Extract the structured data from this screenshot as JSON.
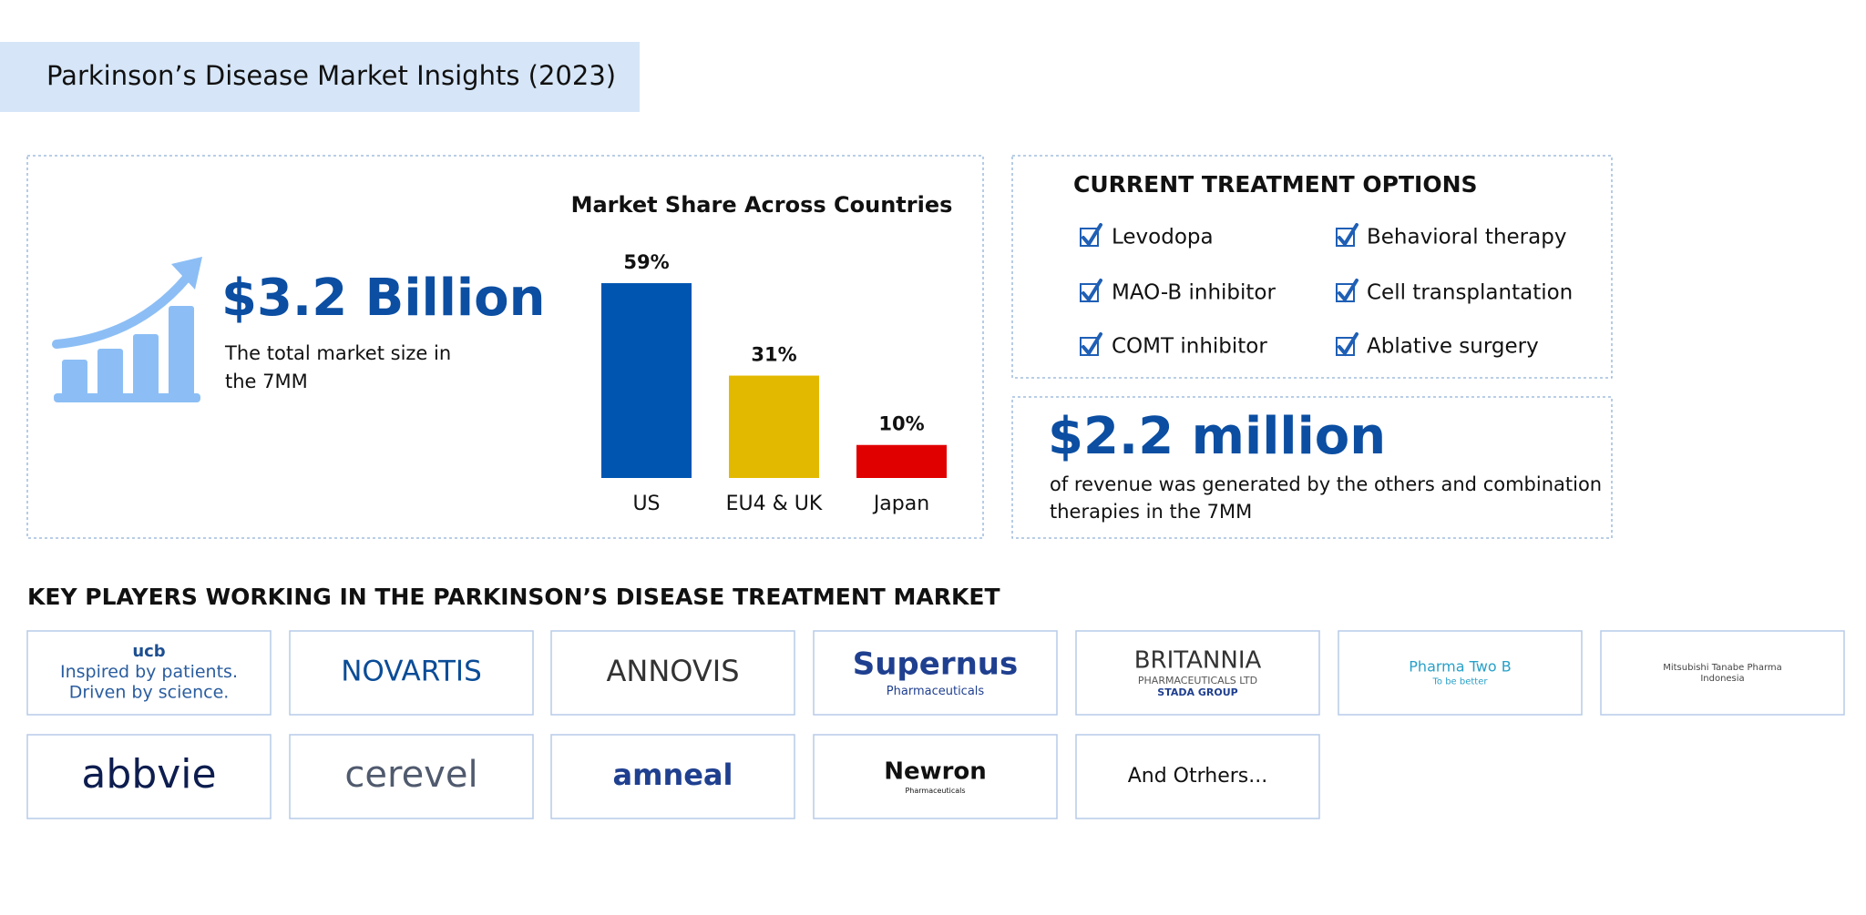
{
  "header": {
    "title": "Parkinson’s Disease Market Insights (2023)"
  },
  "market_size": {
    "value": "$3.2 Billion",
    "description": [
      "The total market size in",
      "the 7MM"
    ]
  },
  "chart_data": {
    "type": "bar",
    "title": "Market Share Across Countries",
    "categories": [
      "US",
      "EU4 & UK",
      "Japan"
    ],
    "values": [
      59,
      31,
      10
    ],
    "value_labels": [
      "59%",
      "31%",
      "10%"
    ],
    "colors": [
      "#0055b0",
      "#e3b900",
      "#e00000"
    ]
  },
  "treatments": {
    "title": "CURRENT TREATMENT OPTIONS",
    "items": [
      "Levodopa",
      "Behavioral therapy",
      "MAO-B inhibitor",
      "Cell transplantation",
      "COMT inhibitor",
      "Ablative surgery"
    ]
  },
  "revenue": {
    "value": "$2.2 million",
    "description": [
      "of revenue was generated by the others and combination",
      "therapies in the 7MM"
    ]
  },
  "key_players": {
    "title": "KEY PLAYERS WORKING IN THE PARKINSON’S DISEASE TREATMENT MARKET",
    "logos": [
      {
        "lines": [
          "ucb",
          "Inspired by patients.",
          "Driven by science."
        ]
      },
      {
        "lines": [
          "NOVARTIS"
        ]
      },
      {
        "lines": [
          "ANNOVIS"
        ]
      },
      {
        "lines": [
          "Supernus",
          "Pharmaceuticals"
        ]
      },
      {
        "lines": [
          "BRITANNIA",
          "PHARMACEUTICALS LTD",
          "STADA GROUP"
        ]
      },
      {
        "lines": [
          "Pharma Two B",
          "To be better"
        ]
      },
      {
        "lines": [
          "Mitsubishi Tanabe Pharma",
          "Indonesia"
        ]
      },
      {
        "lines": [
          "abbvie"
        ]
      },
      {
        "lines": [
          "cerevel"
        ]
      },
      {
        "lines": [
          "amneal"
        ]
      },
      {
        "lines": [
          "Newron",
          "Pharmaceuticals"
        ]
      },
      {
        "lines": [
          "And Otrhers..."
        ]
      }
    ]
  }
}
